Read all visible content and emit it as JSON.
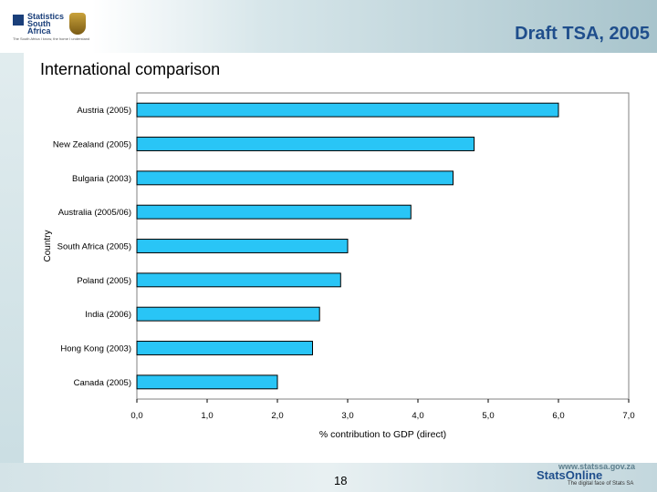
{
  "header": {
    "title": "Draft TSA, 2005",
    "logo_text": "Statistics South Africa",
    "logo_tagline": "The South Africa I know, the home I understand"
  },
  "subtitle": "International comparison",
  "footer": {
    "page_number": "18",
    "url": "www.statssa.gov.za",
    "brand": "StatsOnline",
    "tagline": "The digital face of Stats SA"
  },
  "colors": {
    "bar_fill": "#29c5f6",
    "bar_stroke": "#000000",
    "title": "#1f4e8c"
  },
  "chart_data": {
    "type": "bar",
    "orientation": "horizontal",
    "categories": [
      "Austria (2005)",
      "New Zealand (2005)",
      "Bulgaria (2003)",
      "Australia (2005/06)",
      "South Africa (2005)",
      "Poland (2005)",
      "India (2006)",
      "Hong Kong (2003)",
      "Canada (2005)"
    ],
    "values": [
      6.0,
      4.8,
      4.5,
      3.9,
      3.0,
      2.9,
      2.6,
      2.5,
      2.0
    ],
    "xlabel": "% contribution to GDP (direct)",
    "ylabel": "Country",
    "xlim": [
      0,
      7
    ],
    "xticks": [
      "0,0",
      "1,0",
      "2,0",
      "3,0",
      "4,0",
      "5,0",
      "6,0",
      "7,0"
    ],
    "grid": false,
    "legend": "none"
  }
}
